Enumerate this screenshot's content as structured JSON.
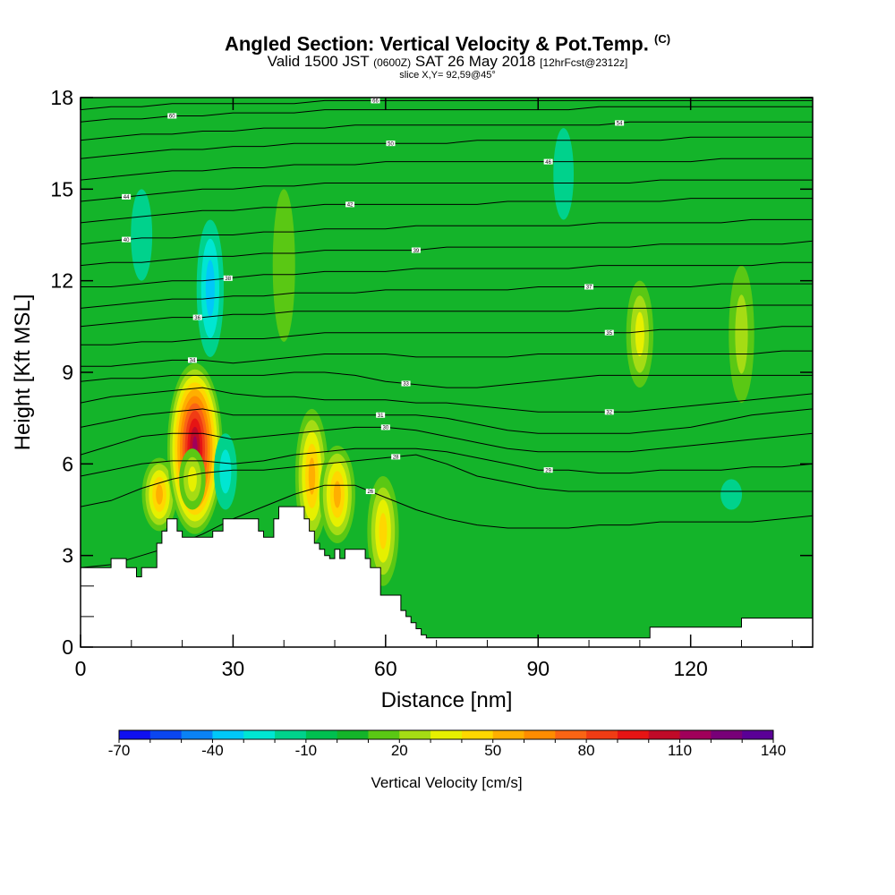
{
  "header": {
    "title": "Angled Section: Vertical Velocity & Pot.Temp.",
    "title_tag": "(C)",
    "valid_main": "Valid 1500 JST",
    "valid_zulu": "(0600Z)",
    "valid_date": "SAT 26 May 2018",
    "valid_fcst": "[12hrFcst@2312z]",
    "slice": "slice X,Y= 92,59@45°"
  },
  "chart_data": {
    "type": "heatmap",
    "title": "Angled Section: Vertical Velocity & Pot.Temp.",
    "xlabel": "Distance [nm]",
    "ylabel": "Height [Kft MSL]",
    "xlim": [
      0,
      144
    ],
    "ylim": [
      0,
      18
    ],
    "x_ticks": [
      "0",
      "30",
      "60",
      "90",
      "120"
    ],
    "x_tick_values": [
      0,
      30,
      60,
      90,
      120
    ],
    "y_ticks": [
      "0",
      "3",
      "6",
      "9",
      "12",
      "15",
      "18"
    ],
    "y_tick_values": [
      0,
      3,
      6,
      9,
      12,
      15,
      18
    ],
    "colorbar": {
      "title": "Vertical Velocity [cm/s]",
      "min": -70,
      "max": 140,
      "step": 10,
      "labels": [
        "-70",
        "-40",
        "-10",
        "20",
        "50",
        "80",
        "110",
        "140"
      ],
      "colors": [
        "#1010f0",
        "#0a46f0",
        "#0a82f5",
        "#00c8f8",
        "#00e6d2",
        "#00d28c",
        "#00c050",
        "#14b42a",
        "#5ac814",
        "#a5dc14",
        "#e6f000",
        "#ffd700",
        "#ffaf00",
        "#ff8c00",
        "#fa6414",
        "#f03c14",
        "#e61414",
        "#c00a28",
        "#a0005a",
        "#780078",
        "#5a0096"
      ]
    },
    "background_w": 0,
    "updrafts": [
      {
        "x": 15.5,
        "base": 3.8,
        "top": 6.2,
        "w": 55
      },
      {
        "x": 22.5,
        "base": 3.7,
        "top": 9.3,
        "w": 115
      },
      {
        "x": 45.5,
        "base": 3.4,
        "top": 7.8,
        "w": 50
      },
      {
        "x": 50.5,
        "base": 3.4,
        "top": 6.6,
        "w": 58
      },
      {
        "x": 59.5,
        "base": 2.0,
        "top": 5.6,
        "w": 45
      },
      {
        "x": 110.0,
        "base": 8.5,
        "top": 12.0,
        "w": 32
      },
      {
        "x": 130.0,
        "base": 8.0,
        "top": 12.5,
        "w": 27
      },
      {
        "x": 40.0,
        "base": 10.0,
        "top": 15.0,
        "w": 18
      },
      {
        "x": 22.0,
        "base": 4.5,
        "top": 6.5,
        "w": 30
      }
    ],
    "downdrafts": [
      {
        "x": 25.5,
        "base": 9.5,
        "top": 14.0,
        "w": -32
      },
      {
        "x": 28.5,
        "base": 4.5,
        "top": 7.0,
        "w": -20
      },
      {
        "x": 12.0,
        "base": 12.0,
        "top": 15.0,
        "w": -15
      },
      {
        "x": 95.0,
        "base": 14.0,
        "top": 17.0,
        "w": -12
      },
      {
        "x": 128.0,
        "base": 4.5,
        "top": 5.5,
        "w": -15
      }
    ],
    "terrain": {
      "x": [
        0,
        3,
        6,
        8,
        9,
        10,
        10.5,
        11,
        12,
        13,
        15,
        16,
        17,
        17.5,
        18,
        19,
        20,
        22,
        24,
        26,
        28,
        30,
        32,
        34,
        35,
        36,
        37,
        38,
        39,
        40,
        41,
        42,
        43,
        44,
        45,
        46,
        47,
        48,
        48.5,
        49,
        50,
        51,
        51.5,
        52,
        53,
        54,
        55,
        56,
        57,
        58,
        59,
        60,
        61,
        62,
        63,
        64,
        65,
        66,
        67,
        68,
        70,
        72,
        74,
        76,
        80,
        84,
        88,
        92,
        96,
        100,
        104,
        108,
        112,
        113,
        116,
        120,
        124,
        126,
        128,
        130,
        132,
        134,
        136,
        138,
        140,
        144
      ],
      "h": [
        2.6,
        2.6,
        2.9,
        2.9,
        2.6,
        2.6,
        2.6,
        2.3,
        2.6,
        2.6,
        3.4,
        3.8,
        4.2,
        4.2,
        4.2,
        3.8,
        3.6,
        3.6,
        3.6,
        3.8,
        4.2,
        4.2,
        4.2,
        4.2,
        3.8,
        3.6,
        3.6,
        4.2,
        4.6,
        4.6,
        4.6,
        4.6,
        4.6,
        4.2,
        3.8,
        3.4,
        3.2,
        3.0,
        3.0,
        2.9,
        3.2,
        2.9,
        2.9,
        3.2,
        3.2,
        3.2,
        3.2,
        2.9,
        2.6,
        2.6,
        1.7,
        1.7,
        1.7,
        1.7,
        1.2,
        1.0,
        0.8,
        0.6,
        0.4,
        0.3,
        0.3,
        0.3,
        0.3,
        0.3,
        0.3,
        0.3,
        0.3,
        0.3,
        0.3,
        0.3,
        0.3,
        0.3,
        0.65,
        0.65,
        0.65,
        0.65,
        0.65,
        0.65,
        0.65,
        0.95,
        0.95,
        0.95,
        0.95,
        0.95,
        0.95,
        1.3,
        1.3,
        1.3
      ]
    },
    "isentropes": [
      {
        "label": "26",
        "label_x": 57,
        "y": [
          2.6,
          2.7,
          3.0,
          3.3,
          3.7,
          4.2,
          4.6,
          5.0,
          5.3,
          5.3,
          4.9,
          4.5,
          4.2,
          4.0,
          3.9,
          3.9,
          3.9,
          4.0,
          4.0,
          4.1,
          4.1,
          4.1,
          4.1,
          4.2,
          4.3
        ]
      },
      {
        "label": "28",
        "label_x": 62,
        "y": [
          4.6,
          4.8,
          5.2,
          5.5,
          5.7,
          5.8,
          5.8,
          5.9,
          6.0,
          6.1,
          6.2,
          6.3,
          6.0,
          5.6,
          5.4,
          5.2,
          5.1,
          5.1,
          5.1,
          5.1,
          5.1,
          5.1,
          5.1,
          5.1,
          5.1
        ]
      },
      {
        "label": "29",
        "label_x": 92,
        "y": [
          5.6,
          5.8,
          6.0,
          6.1,
          6.1,
          6.0,
          6.1,
          6.3,
          6.4,
          6.5,
          6.5,
          6.5,
          6.4,
          6.2,
          6.0,
          5.8,
          5.8,
          5.7,
          5.7,
          5.8,
          5.8,
          5.8,
          5.9,
          5.9,
          6.0
        ]
      },
      {
        "label": "30",
        "label_x": 60,
        "y": [
          6.3,
          6.6,
          6.9,
          7.0,
          7.0,
          6.8,
          6.9,
          7.0,
          7.1,
          7.2,
          7.2,
          7.1,
          6.9,
          6.7,
          6.5,
          6.4,
          6.4,
          6.4,
          6.4,
          6.5,
          6.6,
          6.7,
          6.8,
          6.9,
          7.0
        ]
      },
      {
        "label": "31",
        "label_x": 59,
        "y": [
          7.2,
          7.4,
          7.6,
          7.7,
          7.8,
          7.6,
          7.6,
          7.6,
          7.6,
          7.6,
          7.6,
          7.6,
          7.5,
          7.3,
          7.1,
          7.0,
          7.0,
          7.0,
          7.0,
          7.1,
          7.2,
          7.4,
          7.6,
          7.7,
          7.8
        ]
      },
      {
        "label": "32",
        "label_x": 104,
        "y": [
          8.0,
          8.2,
          8.3,
          8.4,
          8.5,
          8.3,
          8.2,
          8.2,
          8.1,
          8.1,
          8.1,
          8.0,
          8.0,
          7.9,
          7.8,
          7.7,
          7.7,
          7.7,
          7.7,
          7.8,
          7.9,
          8.0,
          8.1,
          8.2,
          8.3
        ]
      },
      {
        "label": "33",
        "label_x": 64,
        "y": [
          8.7,
          8.8,
          8.8,
          8.9,
          8.9,
          8.9,
          8.9,
          9.0,
          9.0,
          8.9,
          8.7,
          8.6,
          8.5,
          8.5,
          8.6,
          8.7,
          8.8,
          8.9,
          8.9,
          8.9,
          8.9,
          8.9,
          8.9,
          8.9,
          8.9
        ]
      },
      {
        "label": "34",
        "label_x": 22,
        "y": [
          9.2,
          9.2,
          9.3,
          9.4,
          9.4,
          9.3,
          9.4,
          9.5,
          9.6,
          9.6,
          9.6,
          9.5,
          9.5,
          9.5,
          9.5,
          9.6,
          9.6,
          9.6,
          9.6,
          9.6,
          9.6,
          9.6,
          9.6,
          9.7,
          9.7
        ]
      },
      {
        "label": "35",
        "label_x": 104,
        "y": [
          9.9,
          9.9,
          10.0,
          10.0,
          10.1,
          10.1,
          10.1,
          10.2,
          10.3,
          10.3,
          10.3,
          10.3,
          10.3,
          10.3,
          10.3,
          10.3,
          10.3,
          10.3,
          10.3,
          10.4,
          10.4,
          10.4,
          10.4,
          10.5,
          10.5
        ]
      },
      {
        "label": "36",
        "label_x": 23,
        "y": [
          10.5,
          10.6,
          10.7,
          10.8,
          10.8,
          10.9,
          10.9,
          11.0,
          11.0,
          11.0,
          11.0,
          11.0,
          11.0,
          11.0,
          11.0,
          11.0,
          11.0,
          11.1,
          11.1,
          11.1,
          11.1,
          11.1,
          11.2,
          11.2,
          11.2
        ]
      },
      {
        "label": "37",
        "label_x": 100,
        "y": [
          11.1,
          11.2,
          11.3,
          11.4,
          11.4,
          11.5,
          11.5,
          11.6,
          11.6,
          11.6,
          11.7,
          11.7,
          11.7,
          11.7,
          11.7,
          11.8,
          11.8,
          11.8,
          11.8,
          11.8,
          11.8,
          11.9,
          11.9,
          11.9,
          11.9
        ]
      },
      {
        "label": "38",
        "label_x": 29,
        "y": [
          11.8,
          11.8,
          11.9,
          12.0,
          12.0,
          12.1,
          12.2,
          12.2,
          12.3,
          12.3,
          12.3,
          12.4,
          12.4,
          12.4,
          12.4,
          12.4,
          12.4,
          12.5,
          12.5,
          12.5,
          12.5,
          12.5,
          12.5,
          12.6,
          12.6
        ]
      },
      {
        "label": "39",
        "label_x": 66,
        "y": [
          12.5,
          12.6,
          12.6,
          12.7,
          12.8,
          12.8,
          12.9,
          12.9,
          13.0,
          13.0,
          13.0,
          13.0,
          13.1,
          13.1,
          13.1,
          13.1,
          13.1,
          13.1,
          13.1,
          13.2,
          13.2,
          13.2,
          13.2,
          13.2,
          13.3
        ]
      },
      {
        "label": "40",
        "label_x": 9,
        "y": [
          13.2,
          13.3,
          13.4,
          13.4,
          13.5,
          13.5,
          13.6,
          13.6,
          13.7,
          13.7,
          13.7,
          13.8,
          13.8,
          13.8,
          13.8,
          13.8,
          13.8,
          13.9,
          13.9,
          13.9,
          13.9,
          13.9,
          14.0,
          14.0,
          14.0
        ]
      },
      {
        "label": "42",
        "label_x": 53,
        "y": [
          13.9,
          14.0,
          14.1,
          14.2,
          14.3,
          14.3,
          14.4,
          14.4,
          14.5,
          14.5,
          14.5,
          14.5,
          14.5,
          14.5,
          14.6,
          14.6,
          14.6,
          14.6,
          14.6,
          14.6,
          14.7,
          14.7,
          14.7,
          14.7,
          14.7
        ]
      },
      {
        "label": "44",
        "label_x": 9,
        "y": [
          14.6,
          14.7,
          14.8,
          14.9,
          15.0,
          15.0,
          15.1,
          15.1,
          15.2,
          15.2,
          15.2,
          15.2,
          15.2,
          15.2,
          15.2,
          15.2,
          15.2,
          15.2,
          15.2,
          15.3,
          15.3,
          15.3,
          15.3,
          15.3,
          15.3
        ]
      },
      {
        "label": "46",
        "label_x": 92,
        "y": [
          15.3,
          15.4,
          15.5,
          15.6,
          15.6,
          15.7,
          15.7,
          15.8,
          15.8,
          15.8,
          15.9,
          15.9,
          15.9,
          15.9,
          15.9,
          15.9,
          15.9,
          15.9,
          15.9,
          15.9,
          15.9,
          16.0,
          16.0,
          16.0,
          16.0
        ]
      },
      {
        "label": "50",
        "label_x": 61,
        "y": [
          16.0,
          16.1,
          16.2,
          16.3,
          16.3,
          16.4,
          16.4,
          16.5,
          16.5,
          16.5,
          16.5,
          16.5,
          16.5,
          16.6,
          16.6,
          16.6,
          16.6,
          16.6,
          16.6,
          16.6,
          16.7,
          16.7,
          16.7,
          16.7,
          16.7
        ]
      },
      {
        "label": "54",
        "label_x": 106,
        "y": [
          16.6,
          16.7,
          16.8,
          16.8,
          16.9,
          16.9,
          17.0,
          17.0,
          17.0,
          17.1,
          17.1,
          17.1,
          17.1,
          17.1,
          17.1,
          17.1,
          17.1,
          17.1,
          17.2,
          17.2,
          17.2,
          17.2,
          17.2,
          17.2,
          17.2
        ]
      },
      {
        "label": "60",
        "label_x": 18,
        "y": [
          17.2,
          17.3,
          17.3,
          17.4,
          17.4,
          17.5,
          17.5,
          17.5,
          17.6,
          17.6,
          17.6,
          17.6,
          17.6,
          17.6,
          17.6,
          17.6,
          17.6,
          17.7,
          17.7,
          17.7,
          17.7,
          17.7,
          17.7,
          17.7,
          17.7
        ]
      },
      {
        "label": "66",
        "label_x": 58,
        "y": [
          17.6,
          17.7,
          17.7,
          17.8,
          17.8,
          17.8,
          17.8,
          17.8,
          17.9,
          17.9,
          17.9,
          17.9,
          17.9,
          17.9,
          17.9,
          17.9,
          17.9,
          17.9,
          17.9,
          17.9,
          17.9,
          17.9,
          17.9,
          17.9,
          17.9
        ]
      }
    ]
  }
}
